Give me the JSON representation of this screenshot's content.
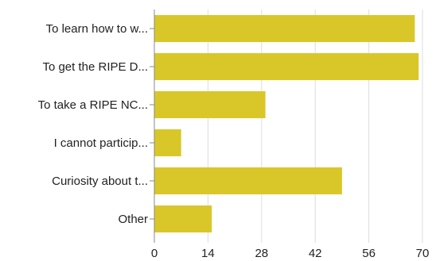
{
  "chart_data": {
    "type": "bar",
    "orientation": "horizontal",
    "categories": [
      "To learn how to w...",
      "To get the RIPE D...",
      "To take a RIPE NC...",
      "I cannot particip...",
      "Curiosity about t...",
      "Other"
    ],
    "values": [
      68,
      69,
      29,
      7,
      49,
      15
    ],
    "xlim": [
      0,
      70
    ],
    "xticks": [
      "0",
      "14",
      "28",
      "42",
      "56",
      "70"
    ],
    "grid": "vertical",
    "legend": "none",
    "title": "",
    "xlabel": "",
    "ylabel": "",
    "colors": {
      "bar": "#D9C72A",
      "grid": "#DDDDDD",
      "axis": "#888888"
    }
  }
}
